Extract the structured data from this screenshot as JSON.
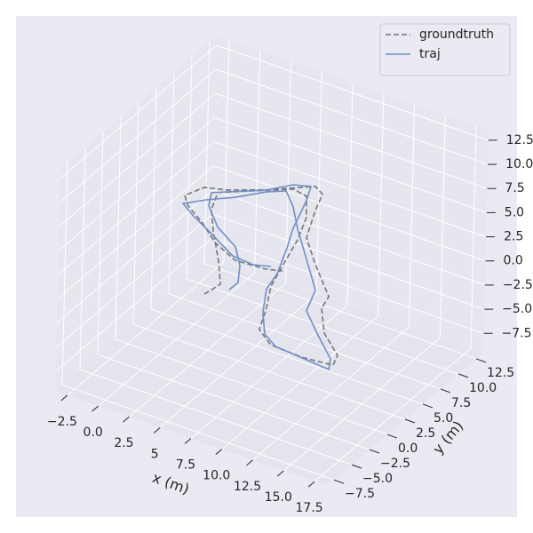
{
  "chart_data": {
    "type": "line3d",
    "xlabel": "x (m)",
    "ylabel": "y (m)",
    "xlim": [
      -3.5,
      18.5
    ],
    "ylim": [
      -8.5,
      13.5
    ],
    "zlim": [
      -9.5,
      13.5
    ],
    "xticks": [
      {
        "value": -2.5,
        "label": "−2.5"
      },
      {
        "value": 0,
        "label": "0.0"
      },
      2.5,
      5,
      {
        "value": 7.5,
        "label": "7.5"
      },
      {
        "value": 10,
        "label": "10.0"
      },
      12.5,
      {
        "value": 15,
        "label": "15.0"
      },
      17.5
    ],
    "yticks": [
      {
        "value": -7.5,
        "label": "−7.5"
      },
      {
        "value": -5,
        "label": "−5.0"
      },
      {
        "value": -2.5,
        "label": "−2.5"
      },
      {
        "value": 0,
        "label": "0.0"
      },
      2.5,
      {
        "value": 5,
        "label": "5.0"
      },
      7.5,
      {
        "value": 10,
        "label": "10.0"
      },
      12.5
    ],
    "zticks": [
      {
        "value": -7.5,
        "label": "−7.5"
      },
      {
        "value": -5,
        "label": "−5.0"
      },
      {
        "value": -2.5,
        "label": "−2.5"
      },
      {
        "value": 0,
        "label": "0.0"
      },
      2.5,
      {
        "value": 5,
        "label": "5.0"
      },
      7.5,
      {
        "value": 10,
        "label": "10.0"
      },
      12.5
    ],
    "grid": true,
    "legend": "upper right",
    "series": [
      {
        "name": "groundtruth",
        "color": "#777777",
        "dash": "dashed",
        "x": [
          5.81,
          6.13,
          4.53,
          2.25,
          0.71,
          0.0,
          2.17,
          4.03,
          5.21,
          6.58,
          7.57,
          8.3,
          9.04,
          10.27,
          11.24,
          12.93,
          15.6,
          17.98,
          17.64,
          15.38,
          13.61,
          13.25,
          10.38,
          8.08,
          6.79,
          6.13,
          5.12,
          2.56,
          0.21,
          -1.25,
          -1.89,
          -0.98,
          0.92,
          2.95,
          5.32,
          7.7,
          8.8
        ],
        "y": [
          -4.06,
          -2.36,
          0.16,
          3.37,
          5.8,
          7.93,
          9.77,
          11.54,
          11.35,
          8.96,
          6.0,
          2.85,
          -0.29,
          -3.07,
          -5.75,
          -7.05,
          -7.34,
          -7.11,
          -5.88,
          -3.83,
          -1.13,
          0.51,
          3.61,
          6.36,
          9.85,
          12.01,
          12.76,
          10.35,
          8.81,
          8.21,
          6.58,
          5.48,
          4.19,
          2.41,
          1.16,
          1.4,
          1.74
        ],
        "z": [
          1.9,
          2.0,
          2.1,
          2.2,
          2.2,
          2.3,
          2.3,
          2.2,
          2.1,
          2.0,
          2.0,
          1.9,
          1.8,
          1.8,
          1.7,
          1.7,
          1.8,
          1.9,
          2.0,
          2.0,
          2.1,
          2.1,
          2.2,
          2.2,
          2.3,
          2.3,
          2.2,
          2.2,
          2.1,
          2.1,
          2.0,
          2.0,
          1.9,
          1.9,
          1.9,
          1.9,
          2.0
        ]
      },
      {
        "name": "traj",
        "color": "#6f8fc6",
        "dash": "solid",
        "x": [
          6.94,
          7.03,
          6.05,
          4.61,
          2.27,
          0.38,
          -0.36,
          0.64,
          2.5,
          3.61,
          4.75,
          5.39,
          6.42,
          7.51,
          8.49,
          8.9,
          10.37,
          11.97,
          13.48,
          16.15,
          18.15,
          17.53,
          15.33,
          12.98,
          12.18,
          9.57,
          6.97,
          5.22,
          3.68,
          2.62,
          1.14,
          -0.37,
          -1.51,
          -0.07,
          2.15,
          4.87,
          6.7,
          7.84
        ],
        "y": [
          -2.52,
          -1.43,
          0.52,
          2.41,
          3.98,
          6.0,
          7.67,
          8.68,
          10.45,
          12.27,
          12.79,
          11.04,
          7.38,
          4.49,
          1.52,
          -0.68,
          -3.74,
          -6.27,
          -7.39,
          -7.68,
          -8.02,
          -6.69,
          -4.6,
          -2.17,
          0.49,
          3.76,
          7.04,
          9.46,
          11.15,
          10.24,
          8.44,
          6.93,
          5.68,
          4.65,
          3.3,
          1.57,
          1.27,
          1.79
        ],
        "z": [
          1.9,
          2.0,
          2.1,
          2.2,
          2.2,
          2.3,
          2.3,
          2.2,
          2.1,
          2.0,
          2.0,
          1.9,
          1.8,
          1.8,
          1.7,
          1.7,
          1.8,
          1.9,
          2.0,
          2.0,
          2.1,
          2.1,
          2.2,
          2.2,
          2.3,
          2.3,
          2.2,
          2.2,
          2.1,
          2.1,
          2.0,
          2.0,
          1.9,
          1.9,
          1.9,
          1.9,
          2.0,
          2.0
        ]
      }
    ]
  }
}
